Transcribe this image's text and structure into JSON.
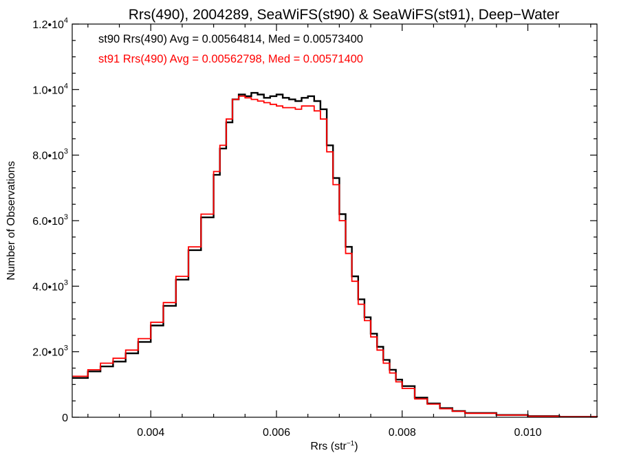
{
  "chart_data": {
    "type": "line",
    "title": "Rrs(490), 2004289, SeaWiFS(st90) & SeaWiFS(st91), Deep−Water",
    "xlabel": "Rrs (str",
    "xlabel_sup": "−1",
    "xlabel_tail": ")",
    "ylabel": "Number of Observations",
    "xlim": [
      0.00275,
      0.0111
    ],
    "ylim": [
      0,
      12000
    ],
    "x_ticks": [
      {
        "value": 0.004,
        "label": "0.004"
      },
      {
        "value": 0.006,
        "label": "0.006"
      },
      {
        "value": 0.008,
        "label": "0.008"
      },
      {
        "value": 0.01,
        "label": "0.010"
      }
    ],
    "y_ticks": [
      {
        "value": 0,
        "mant": "0",
        "exp": ""
      },
      {
        "value": 2000,
        "mant": "2.0•10",
        "exp": "3"
      },
      {
        "value": 4000,
        "mant": "4.0•10",
        "exp": "3"
      },
      {
        "value": 6000,
        "mant": "6.0•10",
        "exp": "3"
      },
      {
        "value": 8000,
        "mant": "8.0•10",
        "exp": "3"
      },
      {
        "value": 10000,
        "mant": "1.0•10",
        "exp": "4"
      },
      {
        "value": 12000,
        "mant": "1.2•10",
        "exp": "4"
      }
    ],
    "grid": false,
    "series": [
      {
        "name": "st90",
        "color": "#000000",
        "annotation": "st90 Rrs(490) Avg = 0.00564814, Med = 0.00573400",
        "x": [
          0.00275,
          0.003,
          0.0032,
          0.0034,
          0.0036,
          0.0038,
          0.004,
          0.0042,
          0.0044,
          0.0046,
          0.0048,
          0.005,
          0.0051,
          0.0052,
          0.0053,
          0.0054,
          0.0055,
          0.0056,
          0.0057,
          0.0058,
          0.0059,
          0.006,
          0.0061,
          0.0062,
          0.0063,
          0.0064,
          0.0065,
          0.0066,
          0.0067,
          0.0068,
          0.0069,
          0.007,
          0.0071,
          0.0072,
          0.0073,
          0.0074,
          0.0075,
          0.0076,
          0.0077,
          0.0078,
          0.0079,
          0.008,
          0.0082,
          0.0084,
          0.0086,
          0.0088,
          0.009,
          0.0095,
          0.01,
          0.0105,
          0.0111
        ],
        "y": [
          1200,
          1400,
          1550,
          1700,
          1950,
          2300,
          2800,
          3400,
          4200,
          5100,
          6100,
          7400,
          8200,
          9000,
          9700,
          9850,
          9800,
          9900,
          9850,
          9750,
          9800,
          9850,
          9750,
          9700,
          9650,
          9750,
          9800,
          9650,
          9400,
          8300,
          7300,
          6200,
          5200,
          4300,
          3600,
          3050,
          2550,
          2150,
          1750,
          1450,
          1150,
          950,
          600,
          420,
          280,
          190,
          130,
          70,
          35,
          15,
          5
        ]
      },
      {
        "name": "st91",
        "color": "#ff0000",
        "annotation": "st91 Rrs(490) Avg = 0.00562798, Med = 0.00571400",
        "x": [
          0.00275,
          0.003,
          0.0032,
          0.0034,
          0.0036,
          0.0038,
          0.004,
          0.0042,
          0.0044,
          0.0046,
          0.0048,
          0.005,
          0.0051,
          0.0052,
          0.0053,
          0.0054,
          0.0055,
          0.0056,
          0.0057,
          0.0058,
          0.0059,
          0.006,
          0.0061,
          0.0062,
          0.0063,
          0.0064,
          0.0065,
          0.0066,
          0.0067,
          0.0068,
          0.0069,
          0.007,
          0.0071,
          0.0072,
          0.0073,
          0.0074,
          0.0075,
          0.0076,
          0.0077,
          0.0078,
          0.0079,
          0.008,
          0.0082,
          0.0084,
          0.0086,
          0.0088,
          0.009,
          0.0095,
          0.01,
          0.0105,
          0.0111
        ],
        "y": [
          1250,
          1450,
          1650,
          1800,
          2050,
          2400,
          2900,
          3500,
          4300,
          5200,
          6200,
          7500,
          8300,
          9100,
          9700,
          9800,
          9750,
          9700,
          9650,
          9600,
          9550,
          9500,
          9450,
          9450,
          9400,
          9500,
          9500,
          9350,
          9100,
          8100,
          7100,
          6000,
          5000,
          4150,
          3450,
          2950,
          2450,
          2050,
          1650,
          1350,
          1080,
          880,
          560,
          400,
          260,
          180,
          120,
          65,
          30,
          12,
          4
        ]
      }
    ]
  }
}
